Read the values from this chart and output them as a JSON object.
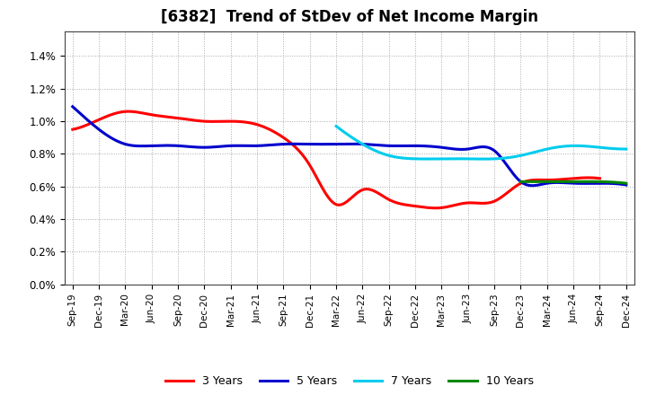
{
  "title": "[6382]  Trend of StDev of Net Income Margin",
  "x_labels": [
    "Sep-19",
    "Dec-19",
    "Mar-20",
    "Jun-20",
    "Sep-20",
    "Dec-20",
    "Mar-21",
    "Jun-21",
    "Sep-21",
    "Dec-21",
    "Mar-22",
    "Jun-22",
    "Sep-22",
    "Dec-22",
    "Mar-23",
    "Jun-23",
    "Sep-23",
    "Dec-23",
    "Mar-24",
    "Jun-24",
    "Sep-24",
    "Dec-24"
  ],
  "ylim": [
    0.0,
    0.0155
  ],
  "yticks": [
    0.0,
    0.002,
    0.004,
    0.006,
    0.008,
    0.01,
    0.012,
    0.014
  ],
  "series": {
    "3 Years": {
      "color": "#ff0000",
      "x_indices": [
        0,
        1,
        2,
        3,
        4,
        5,
        6,
        7,
        8,
        9,
        10,
        11,
        12,
        13,
        14,
        15,
        16,
        17,
        18,
        19,
        20
      ],
      "values": [
        0.0095,
        0.0101,
        0.0106,
        0.0104,
        0.0102,
        0.01,
        0.01,
        0.0098,
        0.009,
        0.0073,
        0.0049,
        0.0058,
        0.0052,
        0.0048,
        0.0047,
        0.005,
        0.0051,
        0.0062,
        0.0064,
        0.0065,
        0.0065
      ]
    },
    "5 Years": {
      "color": "#0000cd",
      "x_indices": [
        0,
        1,
        2,
        3,
        4,
        5,
        6,
        7,
        8,
        9,
        10,
        11,
        12,
        13,
        14,
        15,
        16,
        17,
        18,
        19,
        20,
        21
      ],
      "values": [
        0.0109,
        0.0095,
        0.0086,
        0.0085,
        0.0085,
        0.0084,
        0.0085,
        0.0085,
        0.0086,
        0.0086,
        0.0086,
        0.0086,
        0.0085,
        0.0085,
        0.0084,
        0.0083,
        0.0082,
        0.0063,
        0.0062,
        0.0062,
        0.0062,
        0.0061
      ]
    },
    "7 Years": {
      "color": "#00ccee",
      "x_indices": [
        10,
        11,
        12,
        13,
        14,
        15,
        16,
        17,
        18,
        19,
        20,
        21
      ],
      "values": [
        0.0097,
        0.0086,
        0.0079,
        0.0077,
        0.0077,
        0.0077,
        0.0077,
        0.0079,
        0.0083,
        0.0085,
        0.0084,
        0.0083
      ]
    },
    "10 Years": {
      "color": "#008800",
      "x_indices": [
        17,
        18,
        19,
        20,
        21
      ],
      "values": [
        0.0063,
        0.0063,
        0.0063,
        0.0063,
        0.0062
      ]
    }
  },
  "legend_labels": [
    "3 Years",
    "5 Years",
    "7 Years",
    "10 Years"
  ],
  "background_color": "#ffffff"
}
